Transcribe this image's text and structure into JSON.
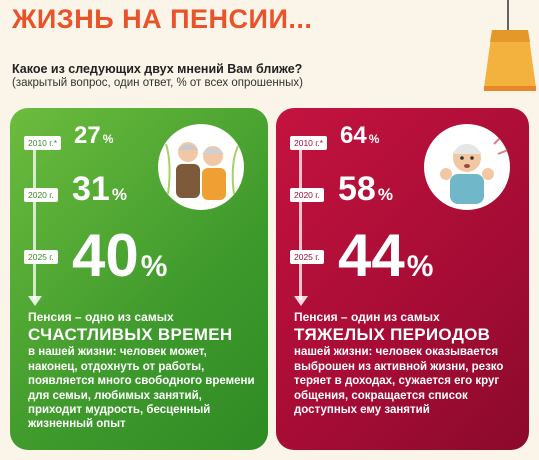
{
  "title": "ЖИЗНЬ НА ПЕНСИИ...",
  "question": "Какое из следующих двух мнений Вам ближе?",
  "question_note": "(закрытый вопрос, один ответ, % от всех опрошенных)",
  "colors": {
    "accent": "#e8532a",
    "green": "#4aa632",
    "red": "#b0103a"
  },
  "chart_data": [
    {
      "type": "table",
      "series": [
        {
          "name": "Пенсия – одно из самых счастливых времен",
          "points": [
            {
              "year_label": "2010 г.*",
              "value": 27,
              "unit": "%"
            },
            {
              "year_label": "2020 г.",
              "value": 31,
              "unit": "%"
            },
            {
              "year_label": "2025 г.",
              "value": 40,
              "unit": "%"
            }
          ]
        },
        {
          "name": "Пенсия – один из самых тяжелых периодов",
          "points": [
            {
              "year_label": "2010 г.*",
              "value": 64,
              "unit": "%"
            },
            {
              "year_label": "2020 г.",
              "value": 58,
              "unit": "%"
            },
            {
              "year_label": "2025 г.",
              "value": 44,
              "unit": "%"
            }
          ]
        }
      ]
    }
  ],
  "left": {
    "lead": "Пенсия – одно из самых",
    "headline": "СЧАСТЛИВЫХ ВРЕМЕН",
    "text": "в нашей жизни: человек может, наконец, отдохнуть от работы, появляется много свободного времени для семьи, любимых занятий, приходит мудрость, бесценный жизненный опыт",
    "icon": "elderly-couple-icon"
  },
  "right": {
    "lead": "Пенсия – один из самых",
    "headline": "ТЯЖЕЛЫХ ПЕРИОДОВ",
    "text": "нашей жизни: человек оказывается выброшен из активной жизни, резко теряет в доходах, сужается его круг общения, сокращается список доступных ему занятий",
    "icon": "worried-elderly-man-icon"
  }
}
